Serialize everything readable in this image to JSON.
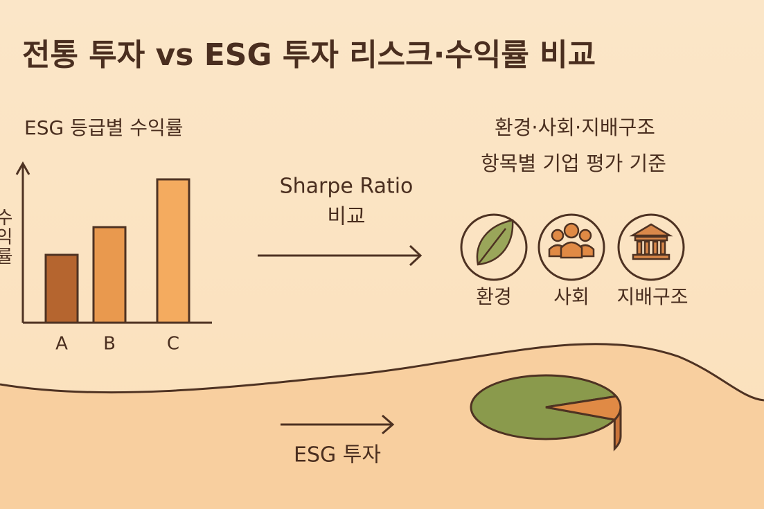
{
  "title": "전통 투자 vs ESG 투자 리스크·수익률 비교",
  "bar_chart": {
    "title": "ESG 등급별 수익률",
    "y_label": "수익률",
    "categories": [
      "A",
      "B",
      "C"
    ],
    "values": [
      98,
      138,
      207
    ]
  },
  "sharpe": {
    "lines": [
      "Sharpe Ratio",
      "비교"
    ]
  },
  "criteria": {
    "lines": [
      "환경·사회·지배구조",
      "항목별 기업 평가 기준"
    ],
    "items": [
      "환경",
      "사회",
      "지배구조"
    ]
  },
  "esg_investment": {
    "label": "ESG 투자",
    "pie_values": [
      88,
      12
    ]
  }
}
